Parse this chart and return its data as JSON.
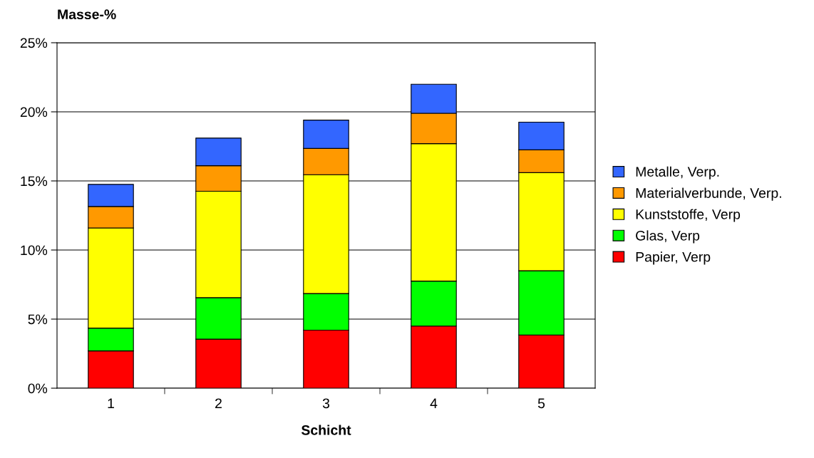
{
  "chart_data": {
    "type": "bar",
    "stacked": true,
    "ylabel": "Masse-%",
    "xlabel": "Schicht",
    "categories": [
      "1",
      "2",
      "3",
      "4",
      "5"
    ],
    "series": [
      {
        "name": "Papier, Verp",
        "color": "#ff0000",
        "values": [
          2.7,
          3.55,
          4.2,
          4.5,
          3.85
        ]
      },
      {
        "name": "Glas, Verp",
        "color": "#00ff00",
        "values": [
          1.65,
          3.0,
          2.65,
          3.25,
          4.65
        ]
      },
      {
        "name": "Kunststoffe, Verp",
        "color": "#ffff00",
        "values": [
          7.25,
          7.7,
          8.6,
          9.95,
          7.1
        ]
      },
      {
        "name": "Materialverbunde, Verp.",
        "color": "#ff9900",
        "values": [
          1.55,
          1.85,
          1.9,
          2.2,
          1.65
        ]
      },
      {
        "name": "Metalle, Verp.",
        "color": "#3366ff",
        "values": [
          1.6,
          2.0,
          2.05,
          2.1,
          2.0
        ]
      }
    ],
    "ylim": [
      0,
      25
    ],
    "yticks": [
      {
        "value": 0,
        "label": "0%"
      },
      {
        "value": 5,
        "label": "5%"
      },
      {
        "value": 10,
        "label": "10%"
      },
      {
        "value": 15,
        "label": "15%"
      },
      {
        "value": 20,
        "label": "20%"
      },
      {
        "value": 25,
        "label": "25%"
      }
    ],
    "grid": "y",
    "legend": "right"
  }
}
